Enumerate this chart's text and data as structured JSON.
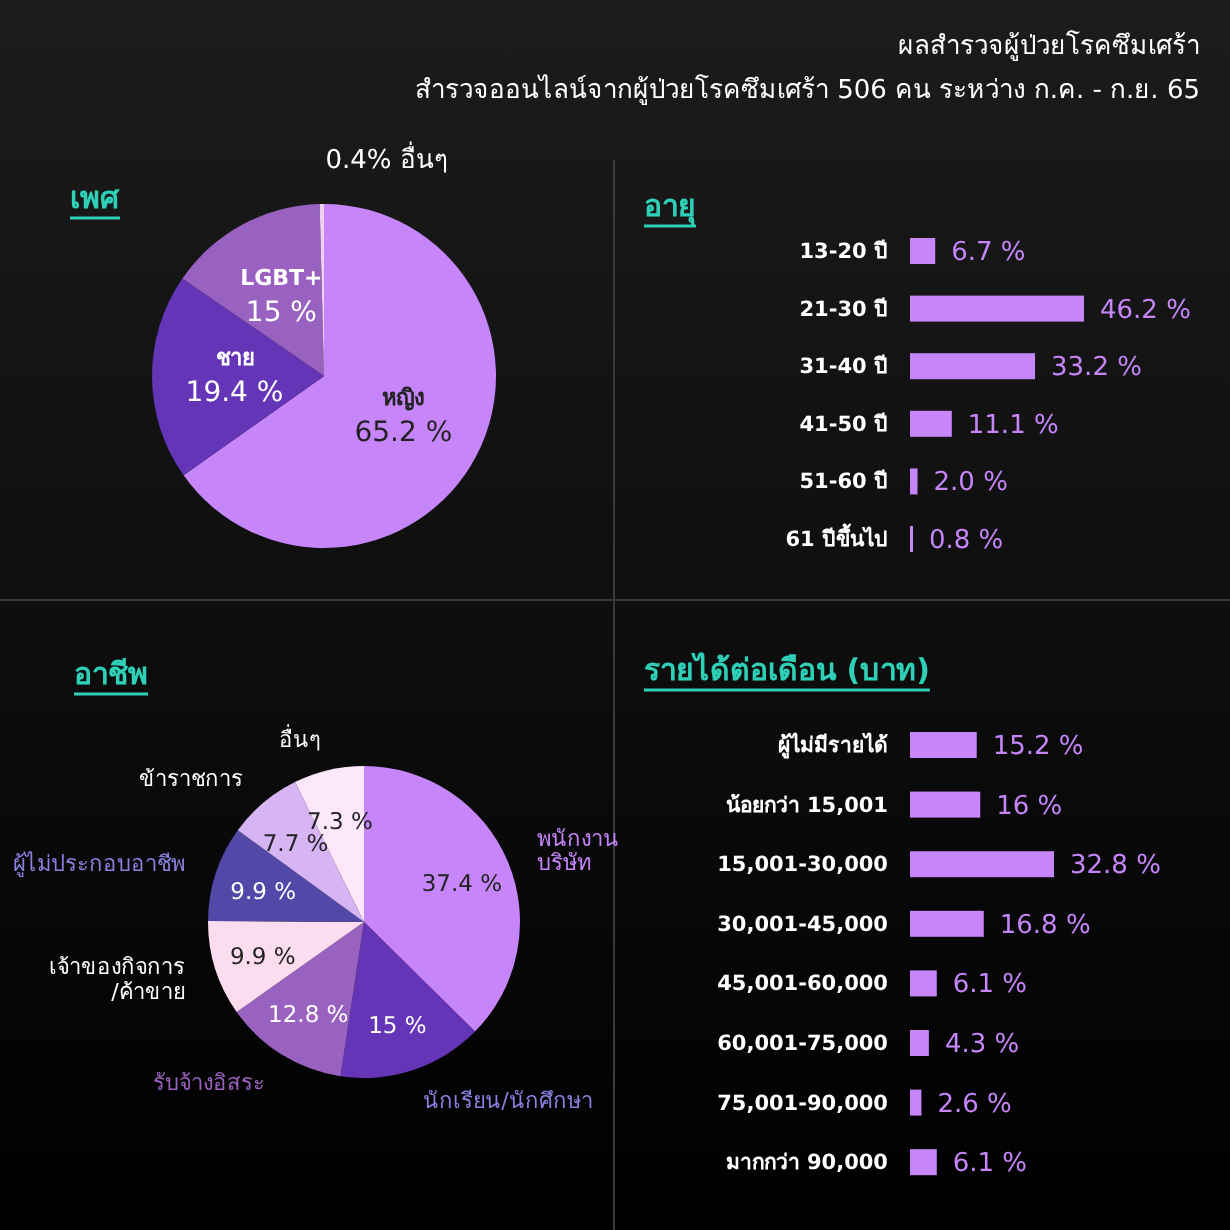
{
  "chart_data": [
    {
      "type": "pie",
      "title": "เพศ",
      "annotations": [
        "ผลสำรวจผู้ป่วยโรคซึมเศร้า",
        "สำรวจออนไลน์จากผู้ป่วยโรคซึมเศร้า 506 คน ระหว่าง ก.ค. - ก.ย. 65"
      ],
      "categories": [
        "หญิง",
        "ชาย",
        "LGBT+",
        "อื่นๆ"
      ],
      "values": [
        65.2,
        19.4,
        15,
        0.4
      ],
      "value_labels": [
        "65.2 %",
        "19.4 %",
        "15 %",
        "0.4%"
      ],
      "colors": [
        "#c785fa",
        "#6535b8",
        "#9a62c0",
        "#f0d0f0"
      ]
    },
    {
      "type": "bar",
      "orientation": "horizontal",
      "title": "อายุ",
      "categories": [
        "13-20 ปี",
        "21-30 ปี",
        "31-40 ปี",
        "41-50 ปี",
        "51-60 ปี",
        "61 ปีขึ้นไป"
      ],
      "values": [
        6.7,
        46.2,
        33.2,
        11.1,
        2.0,
        0.8
      ],
      "value_labels": [
        "6.7 %",
        "46.2 %",
        "33.2 %",
        "11.1 %",
        "2.0 %",
        "0.8 %"
      ],
      "color": "#c785fa"
    },
    {
      "type": "pie",
      "title": "อาชีพ",
      "categories": [
        "พนักงาน\nบริษัท",
        "นักเรียน/นักศึกษา",
        "รับจ้างอิสระ",
        "เจ้าของกิจการ\n/ค้าขาย",
        "ผู้ไม่ประกอบอาชีพ",
        "ข้าราชการ",
        "อื่นๆ"
      ],
      "values": [
        37.4,
        15,
        12.8,
        9.9,
        9.9,
        7.7,
        7.3
      ],
      "value_labels": [
        "37.4 %",
        "15 %",
        "12.8 %",
        "9.9 %",
        "9.9 %",
        "7.7 %",
        "7.3 %"
      ],
      "colors": [
        "#c785fa",
        "#6535b8",
        "#9a62c0",
        "#fcdcef",
        "#5148a8",
        "#d7b5f5",
        "#fde8fb"
      ]
    },
    {
      "type": "bar",
      "orientation": "horizontal",
      "title": "รายได้ต่อเดือน (บาท)",
      "categories": [
        "ผู้ไม่มีรายได้",
        "น้อยกว่า 15,001",
        "15,001-30,000",
        "30,001-45,000",
        "45,001-60,000",
        "60,001-75,000",
        "75,001-90,000",
        "มากกว่า 90,000"
      ],
      "values": [
        15.2,
        16,
        32.8,
        16.8,
        6.1,
        4.3,
        2.6,
        6.1
      ],
      "value_labels": [
        "15.2 %",
        "16 %",
        "32.8 %",
        "16.8 %",
        "6.1 %",
        "4.3 %",
        "2.6 %",
        "6.1 %"
      ],
      "color": "#c785fa"
    }
  ]
}
